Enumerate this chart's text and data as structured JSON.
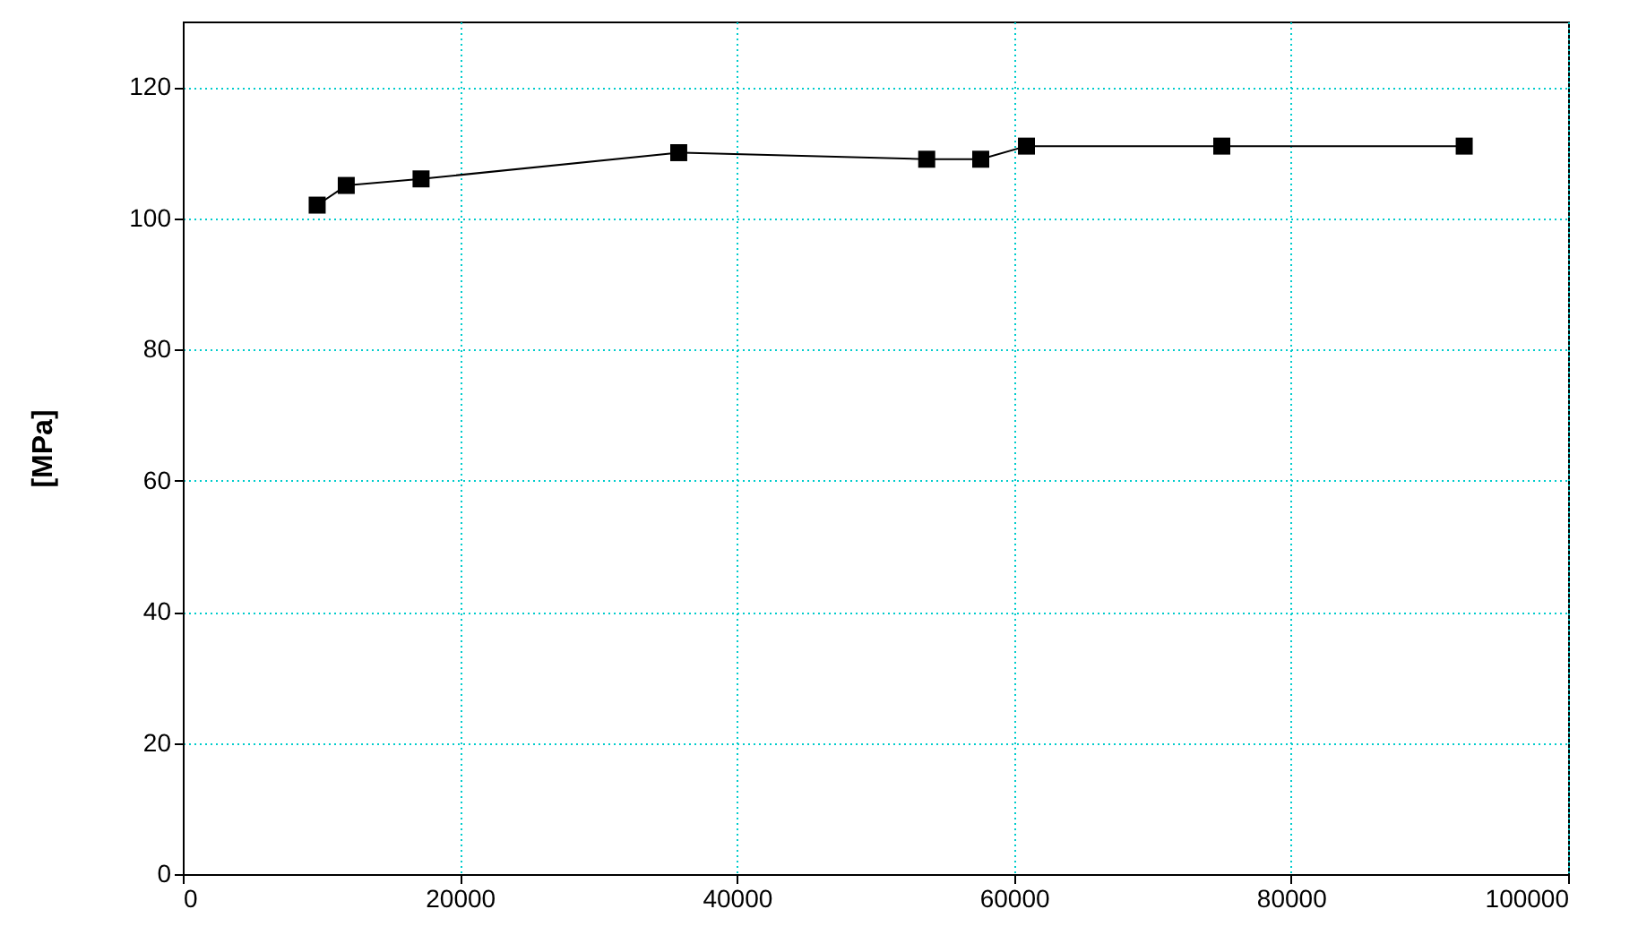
{
  "chart_data": {
    "type": "line",
    "ylabel": "[MPa]",
    "x": [
      9700,
      11800,
      17200,
      35800,
      53700,
      57600,
      60900,
      75000,
      92500
    ],
    "series": [
      {
        "color": "#000000",
        "values": [
          102,
          105,
          106,
          110,
          109,
          109,
          111,
          111,
          111
        ]
      }
    ],
    "xlim": [
      0,
      100000
    ],
    "xticks": [
      0,
      20000,
      40000,
      60000,
      80000,
      100000
    ],
    "ylim": [
      0,
      130
    ],
    "yticks": [
      0,
      20,
      40,
      60,
      80,
      100,
      120
    ],
    "grid": true,
    "marker": "square",
    "line_style": "solid"
  }
}
